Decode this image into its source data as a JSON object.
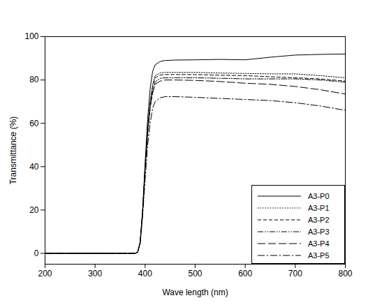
{
  "chart_data": {
    "type": "line",
    "x_label": "Wave length (nm)",
    "y_label": "Transmittance (%)",
    "x": [
      200,
      300,
      380,
      385,
      390,
      395,
      400,
      405,
      410,
      415,
      420,
      430,
      440,
      460,
      500,
      550,
      600,
      650,
      700,
      750,
      800
    ],
    "series": [
      {
        "name": "A3-P0",
        "color": "#000000",
        "line_style": "solid",
        "values": [
          0,
          0,
          0,
          0.5,
          5,
          20,
          42,
          62,
          76,
          84,
          87,
          88.5,
          89,
          89.2,
          89.3,
          89.5,
          89.3,
          90.5,
          91.5,
          91.8,
          92
        ]
      },
      {
        "name": "A3-P1",
        "color": "#000000",
        "line_style": "dotted",
        "values": [
          0,
          0,
          0,
          0.5,
          5,
          20,
          40,
          58,
          70,
          78,
          82,
          83.3,
          83.5,
          83.5,
          83.5,
          83.2,
          83,
          82.8,
          82.8,
          82,
          81
        ]
      },
      {
        "name": "A3-P2",
        "color": "#000000",
        "line_style": "dashed",
        "values": [
          0,
          0,
          0,
          0.5,
          5,
          20,
          40,
          57,
          69,
          77,
          81,
          82.3,
          82.5,
          82.5,
          82.5,
          82.2,
          82,
          81.5,
          81,
          80.5,
          79.5
        ]
      },
      {
        "name": "A3-P3",
        "color": "#000000",
        "line_style": "dashdotdot",
        "values": [
          0,
          0,
          0,
          0.5,
          5,
          19,
          39,
          56,
          68,
          75,
          79,
          80.8,
          81,
          81,
          81,
          80.8,
          80.5,
          80.5,
          80.5,
          80,
          79
        ]
      },
      {
        "name": "A3-P4",
        "color": "#000000",
        "line_style": "longdash",
        "values": [
          0,
          0,
          0,
          0.5,
          5,
          19,
          38,
          55,
          67,
          74,
          78,
          79.5,
          80,
          80,
          79.8,
          79.3,
          78.5,
          78,
          77,
          75.5,
          73.5
        ]
      },
      {
        "name": "A3-P5",
        "color": "#000000",
        "line_style": "dashdot",
        "values": [
          0,
          0,
          0,
          0.5,
          4,
          17,
          34,
          50,
          60,
          67,
          70,
          71.8,
          72.3,
          72.3,
          72,
          71.5,
          71,
          70.5,
          69.5,
          68,
          66
        ]
      }
    ],
    "xlim": [
      200,
      800
    ],
    "xticks": [
      200,
      300,
      400,
      500,
      600,
      700,
      800
    ],
    "ylim": [
      -5,
      100
    ],
    "yticks": [
      0,
      20,
      40,
      60,
      80,
      100
    ],
    "grid": false,
    "legend": "lower right"
  }
}
